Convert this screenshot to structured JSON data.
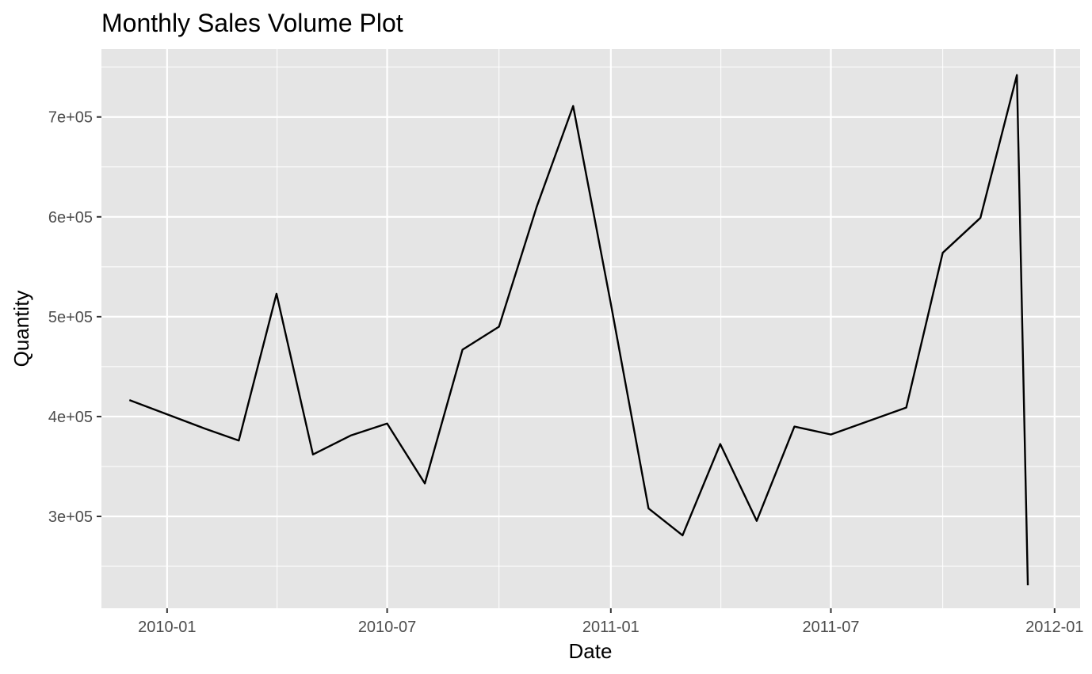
{
  "chart_data": {
    "type": "line",
    "title": "Monthly Sales Volume Plot",
    "xlabel": "Date",
    "ylabel": "Quantity",
    "x_ticks": [
      "2010-01",
      "2010-07",
      "2011-01",
      "2011-07",
      "2012-01"
    ],
    "y_ticks": [
      "3e+05",
      "4e+05",
      "5e+05",
      "6e+05",
      "7e+05"
    ],
    "xlim": [
      "2009-11-08",
      "2012-01-22"
    ],
    "ylim": [
      208000,
      768000
    ],
    "grid": true,
    "legend": "none",
    "colors": {
      "panel": "#e5e5e5",
      "grid": "#ffffff",
      "line": "#000000"
    },
    "series": [
      {
        "x": [
          "2009-12-01",
          "2010-02-01",
          "2010-03-01",
          "2010-04-01",
          "2010-05-01",
          "2010-06-01",
          "2010-07-01",
          "2010-08-01",
          "2010-09-01",
          "2010-10-01",
          "2010-11-01",
          "2010-12-01",
          "2011-01-01",
          "2011-02-01",
          "2011-03-01",
          "2011-04-01",
          "2011-05-01",
          "2011-06-01",
          "2011-07-01",
          "2011-09-01",
          "2011-10-01",
          "2011-11-01",
          "2011-12-01",
          "2011-12-10"
        ],
        "values": [
          416500,
          388000,
          376000,
          523000,
          362000,
          381000,
          393000,
          333000,
          467000,
          490000,
          610000,
          711000,
          513000,
          308000,
          281000,
          372500,
          295500,
          390000,
          382000,
          409000,
          564000,
          599000,
          742000,
          231000
        ]
      }
    ]
  }
}
